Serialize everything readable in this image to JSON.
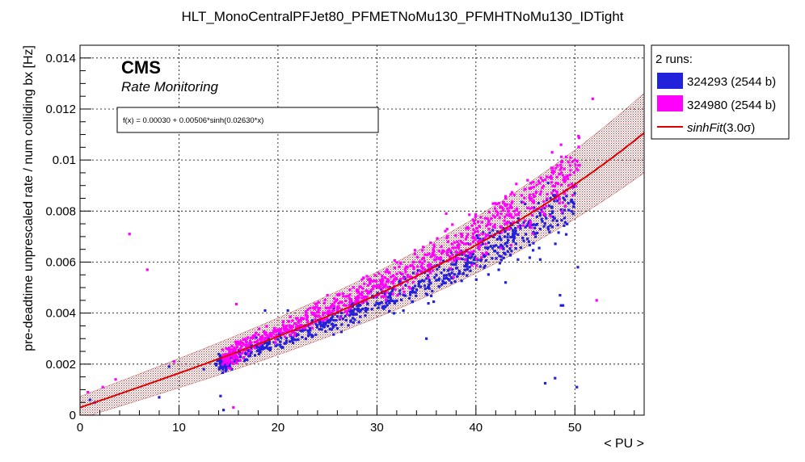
{
  "colors": {
    "run1": "#2222dd",
    "run2": "#ff00ff",
    "fit": "#dd0000",
    "band": "#a52a2a",
    "grid": "#000000"
  },
  "chart_data": {
    "type": "scatter",
    "title": "HLT_MonoCentralPFJet80_PFMETNoMu130_PFMHTNoMu130_IDTight",
    "xlabel": "< PU >",
    "ylabel": "pre-deadtime unprescaled rate / num colliding bx [Hz]",
    "xlim": [
      0,
      57
    ],
    "ylim": [
      0,
      0.0145
    ],
    "xticks": [
      0,
      10,
      20,
      30,
      40,
      50
    ],
    "yticks": [
      0,
      0.002,
      0.004,
      0.006,
      0.008,
      0.01,
      0.012,
      0.014
    ],
    "xtick_labels": [
      "0",
      "10",
      "20",
      "30",
      "40",
      "50"
    ],
    "ytick_labels": [
      "0",
      "0.002",
      "0.004",
      "0.006",
      "0.008",
      "0.01",
      "0.012",
      "0.014"
    ],
    "grid": true,
    "legend_position": "right-outside",
    "cms_label": "CMS",
    "cms_sublabel": "Rate Monitoring",
    "fit_formula": "f(x) = 0.00030 + 0.00506*sinh(0.02630*x)",
    "fit": {
      "a": 0.0003,
      "b": 0.00506,
      "c": 0.0263,
      "x_range": [
        0,
        57
      ]
    },
    "band_sigma": 3.0,
    "legend": {
      "header": "2 runs:",
      "entries": [
        {
          "label": "324293 (2544 b)",
          "kind": "box",
          "color_key": "run1"
        },
        {
          "label": "324980 (2544 b)",
          "kind": "box",
          "color_key": "run2"
        },
        {
          "label_main": "sinhFit",
          "label_paren": "(3.0σ)",
          "kind": "line",
          "color_key": "fit"
        }
      ]
    },
    "series": [
      {
        "name": "324293 (2544 b)",
        "color_key": "run1",
        "trend": {
          "scale": 0.93,
          "x_from": 14.0,
          "x_to": 50.0,
          "count": 700,
          "spread": 0.06
        },
        "cluster": {
          "x": 14.5,
          "y": 0.002,
          "count": 90,
          "sx": 0.35,
          "sy": 0.00012
        },
        "x": [
          14.2,
          18.7,
          21.0,
          26.0,
          35.0,
          36.0,
          38.0,
          43.0,
          46.5,
          47.0,
          48.0,
          48.5,
          48.8,
          48.6,
          50.3,
          12.5,
          9.0,
          8.0,
          1.0,
          1.5,
          14.5,
          50.2
        ],
        "y": [
          0.00075,
          0.0041,
          0.0041,
          0.0034,
          0.003,
          0.0055,
          0.006,
          0.0052,
          0.0061,
          0.00125,
          0.00145,
          0.0047,
          0.0043,
          0.0043,
          0.0058,
          0.0018,
          0.0019,
          0.0007,
          0.0006,
          0.0005,
          0.0002,
          0.0011
        ]
      },
      {
        "name": "324980 (2544 b)",
        "color_key": "run2",
        "trend": {
          "scale": 1.06,
          "x_from": 15.0,
          "x_to": 50.5,
          "count": 800,
          "spread": 0.06
        },
        "cluster": {
          "x": 15.0,
          "y": 0.0022,
          "count": 50,
          "sx": 0.5,
          "sy": 0.00015
        },
        "x": [
          5.0,
          6.8,
          15.8,
          9.5,
          17.0,
          25.0,
          28.0,
          37.0,
          43.0,
          51.8,
          52.2,
          47.7,
          48.6,
          0.8,
          2.3,
          3.6,
          15.5
        ],
        "y": [
          0.0071,
          0.0057,
          0.00435,
          0.0021,
          0.0024,
          0.0047,
          0.0049,
          0.0079,
          0.0085,
          0.0124,
          0.0045,
          0.0103,
          0.0106,
          0.0009,
          0.0011,
          0.0014,
          0.0003
        ]
      }
    ]
  }
}
